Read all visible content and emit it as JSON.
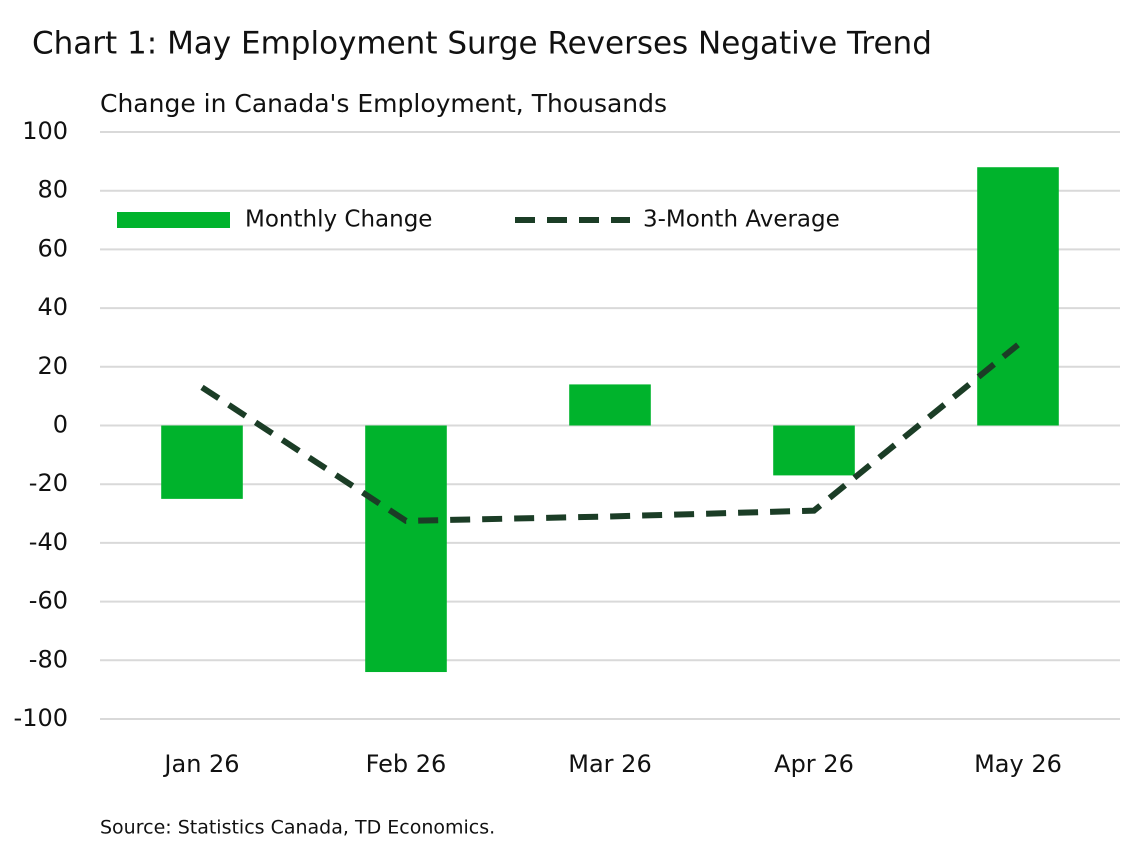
{
  "chart_data": {
    "type": "bar",
    "title": "Chart 1: May Employment Surge Reverses Negative Trend",
    "subtitle": "Change in Canada's Employment, Thousands",
    "source": "Source: Statistics Canada, TD Economics.",
    "categories": [
      "Jan 26",
      "Feb 26",
      "Mar 26",
      "Apr 26",
      "May 26"
    ],
    "series": [
      {
        "name": "Monthly Change",
        "type": "bar",
        "color": "#00b32c",
        "values": [
          -25,
          -84,
          14,
          -17,
          88
        ]
      },
      {
        "name": "3-Month Average",
        "type": "line",
        "color": "#1b3d26",
        "dashed": true,
        "values": [
          13,
          -32.5,
          -31,
          -29,
          27.5
        ]
      }
    ],
    "ylim": [
      -100,
      100
    ],
    "yticks": [
      -100,
      -80,
      -60,
      -40,
      -20,
      0,
      20,
      40,
      60,
      80,
      100
    ],
    "grid": true,
    "legend": "top"
  }
}
